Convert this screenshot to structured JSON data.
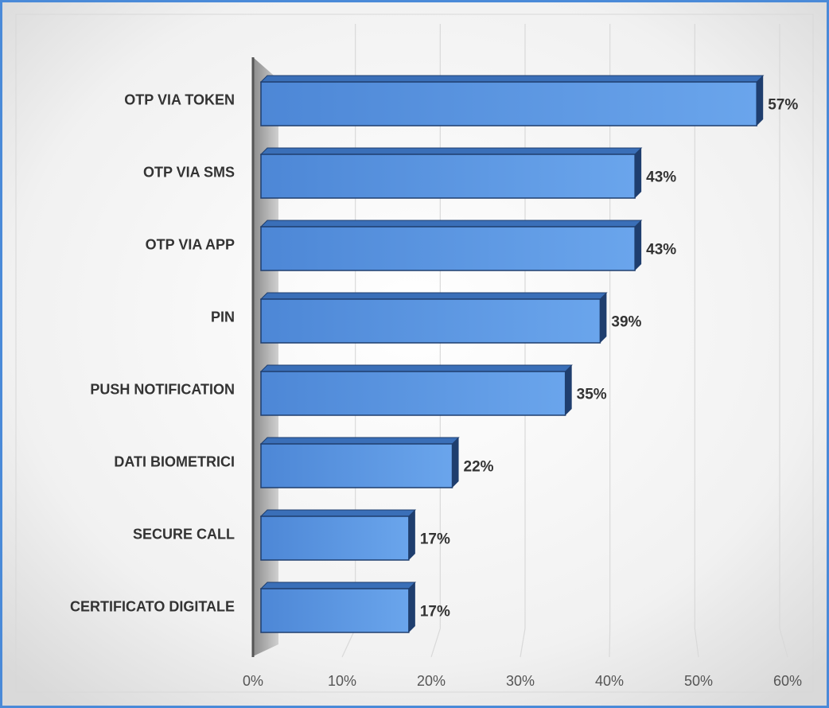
{
  "chart_data": {
    "type": "bar",
    "orientation": "horizontal",
    "categories": [
      "OTP VIA TOKEN",
      "OTP VIA SMS",
      "OTP VIA APP",
      "PIN",
      "PUSH NOTIFICATION",
      "DATI BIOMETRICI",
      "SECURE CALL",
      "CERTIFICATO DIGITALE"
    ],
    "values": [
      57,
      43,
      43,
      39,
      35,
      22,
      17,
      17
    ],
    "value_labels": [
      "57%",
      "43%",
      "43%",
      "39%",
      "35%",
      "22%",
      "17%",
      "17%"
    ],
    "color": "#5590dc",
    "xlim": [
      0,
      60
    ],
    "xticks": [
      {
        "value": 0,
        "label": "0%"
      },
      {
        "value": 10,
        "label": "10%"
      },
      {
        "value": 20,
        "label": "20%"
      },
      {
        "value": 30,
        "label": "30%"
      },
      {
        "value": 40,
        "label": "40%"
      },
      {
        "value": 50,
        "label": "50%"
      },
      {
        "value": 60,
        "label": "60%"
      }
    ],
    "grid": true
  }
}
